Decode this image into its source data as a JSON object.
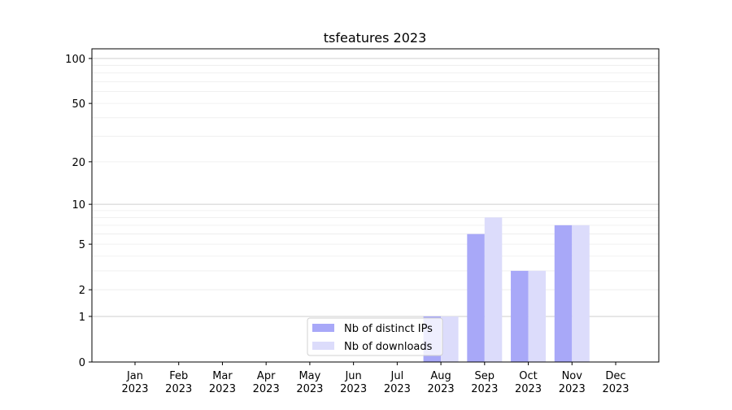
{
  "chart_data": {
    "type": "bar",
    "title": "tsfeatures 2023",
    "xlabel": "",
    "ylabel": "",
    "yscale": "log10(1+y)",
    "ylim": [
      0,
      116
    ],
    "yticks": [
      0,
      1,
      2,
      5,
      10,
      20,
      50,
      100
    ],
    "grid": true,
    "legend": "lower-center",
    "categories": [
      "Jan\n2023",
      "Feb\n2023",
      "Mar\n2023",
      "Apr\n2023",
      "May\n2023",
      "Jun\n2023",
      "Jul\n2023",
      "Aug\n2023",
      "Sep\n2023",
      "Oct\n2023",
      "Nov\n2023",
      "Dec\n2023"
    ],
    "series": [
      {
        "name": "Nb of distinct IPs",
        "color": "#a8a8f8",
        "values": [
          0,
          0,
          0,
          0,
          0,
          0,
          0,
          1,
          6,
          3,
          7,
          0
        ]
      },
      {
        "name": "Nb of downloads",
        "color": "#dcdcfb",
        "values": [
          0,
          0,
          0,
          0,
          0,
          0,
          0,
          1,
          8,
          3,
          7,
          0
        ]
      }
    ]
  }
}
